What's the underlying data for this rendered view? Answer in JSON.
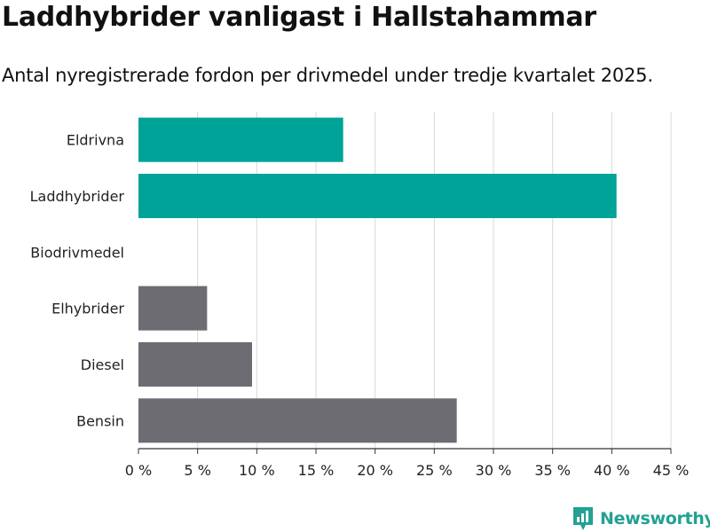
{
  "title": "Laddhybrider vanligast i Hallstahammar",
  "subtitle": "Antal nyregistrerade fordon per drivmedel under tredje kvartalet 2025.",
  "brand": {
    "name": "Newsworthy",
    "color": "#23a192"
  },
  "chart_data": {
    "type": "bar",
    "orientation": "horizontal",
    "categories": [
      "Eldrivna",
      "Laddhybrider",
      "Biodrivmedel",
      "Elhybrider",
      "Diesel",
      "Bensin"
    ],
    "values": [
      17.3,
      40.4,
      0,
      5.8,
      9.6,
      26.9
    ],
    "colors": [
      "#00a398",
      "#00a398",
      "#00a398",
      "#6d6c72",
      "#6d6c72",
      "#6d6c72"
    ],
    "xlim": [
      0,
      45
    ],
    "xticks": [
      0,
      5,
      10,
      15,
      20,
      25,
      30,
      35,
      40,
      45
    ],
    "tick_suffix": " %",
    "grid": true,
    "xlabel": "",
    "ylabel": ""
  }
}
